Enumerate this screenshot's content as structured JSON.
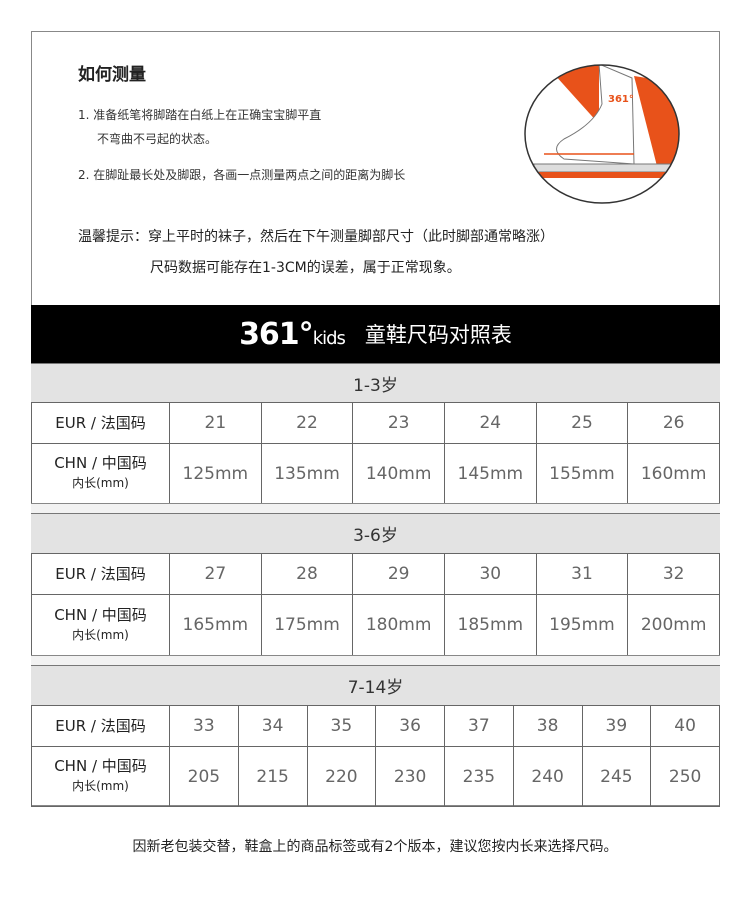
{
  "measure": {
    "title": "如何测量",
    "step1_line1": "1. 准备纸笔将脚踏在白纸上在正确宝宝脚平直",
    "step1_line2": "不弯曲不弓起的状态。",
    "step2": "2. 在脚趾最长处及脚跟，各画一点测量两点之间的距离为脚长",
    "tip_line1": "温馨提示：穿上平时的袜子，然后在下午测量脚部尺寸（此时脚部通常略涨）",
    "tip_line2": "尺码数据可能存在1-3CM的误差，属于正常现象。",
    "illustration_logo": "361°"
  },
  "banner": {
    "logo_main": "361°",
    "logo_sub": "kids",
    "title": "童鞋尺码对照表"
  },
  "labels": {
    "eur": "EUR / 法国码",
    "chn": "CHN / 中国码",
    "chn_sub": "内长(mm)"
  },
  "sections": [
    {
      "age": "1-3岁",
      "eur": [
        "21",
        "22",
        "23",
        "24",
        "25",
        "26"
      ],
      "chn": [
        "125mm",
        "135mm",
        "140mm",
        "145mm",
        "155mm",
        "160mm"
      ]
    },
    {
      "age": "3-6岁",
      "eur": [
        "27",
        "28",
        "29",
        "30",
        "31",
        "32"
      ],
      "chn": [
        "165mm",
        "175mm",
        "180mm",
        "185mm",
        "195mm",
        "200mm"
      ]
    },
    {
      "age": "7-14岁",
      "eur": [
        "33",
        "34",
        "35",
        "36",
        "37",
        "38",
        "39",
        "40"
      ],
      "chn": [
        "205",
        "215",
        "220",
        "230",
        "235",
        "240",
        "245",
        "250"
      ]
    }
  ],
  "footer": "因新老包装交替，鞋盒上的商品标签或有2个版本，建议您按内长来选择尺码。",
  "colors": {
    "accent": "#e8521a",
    "band": "#000000",
    "section_bg": "#e3e3e3"
  }
}
